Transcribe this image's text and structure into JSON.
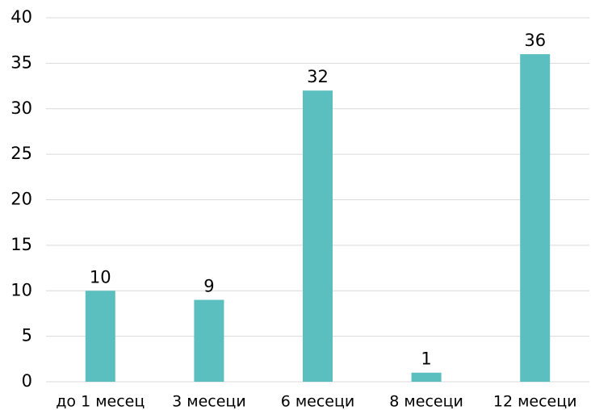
{
  "chart_data": {
    "type": "bar",
    "categories": [
      "до 1 месец",
      "3 месеци",
      "6 месеци",
      "8 месеци",
      "12 месеци"
    ],
    "values": [
      10,
      9,
      32,
      1,
      36
    ],
    "color": "#5bbfbf",
    "ylim": [
      0,
      40
    ],
    "yticks": [
      0,
      5,
      10,
      15,
      20,
      25,
      30,
      35,
      40
    ],
    "grid": true
  }
}
